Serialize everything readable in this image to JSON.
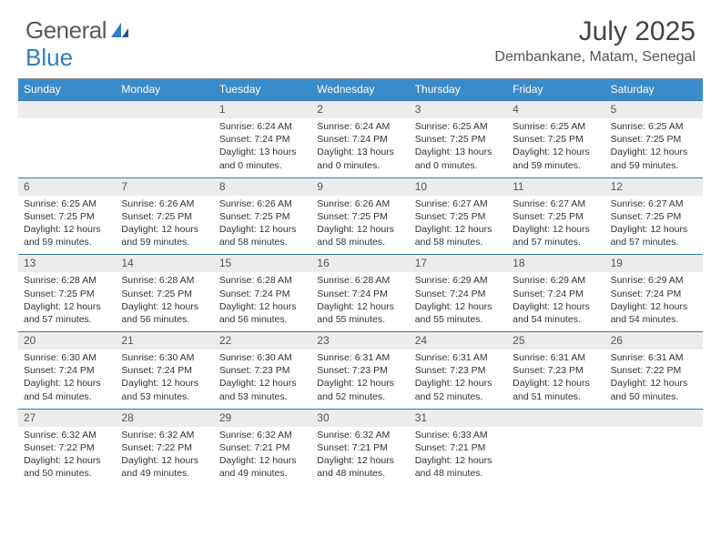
{
  "brand": {
    "part1": "General",
    "part2": "Blue"
  },
  "title": "July 2025",
  "location": "Dembankane, Matam, Senegal",
  "colors": {
    "header_bg": "#3a8bc9",
    "daynum_bg": "#ececec",
    "week_border": "#3a78a8",
    "brand_blue": "#2f7fc1",
    "text": "#333333",
    "bg": "#ffffff"
  },
  "weekdays": [
    "Sunday",
    "Monday",
    "Tuesday",
    "Wednesday",
    "Thursday",
    "Friday",
    "Saturday"
  ],
  "weeks": [
    [
      {
        "n": "",
        "lines": []
      },
      {
        "n": "",
        "lines": []
      },
      {
        "n": "1",
        "lines": [
          "Sunrise: 6:24 AM",
          "Sunset: 7:24 PM",
          "Daylight: 13 hours and 0 minutes."
        ]
      },
      {
        "n": "2",
        "lines": [
          "Sunrise: 6:24 AM",
          "Sunset: 7:24 PM",
          "Daylight: 13 hours and 0 minutes."
        ]
      },
      {
        "n": "3",
        "lines": [
          "Sunrise: 6:25 AM",
          "Sunset: 7:25 PM",
          "Daylight: 13 hours and 0 minutes."
        ]
      },
      {
        "n": "4",
        "lines": [
          "Sunrise: 6:25 AM",
          "Sunset: 7:25 PM",
          "Daylight: 12 hours and 59 minutes."
        ]
      },
      {
        "n": "5",
        "lines": [
          "Sunrise: 6:25 AM",
          "Sunset: 7:25 PM",
          "Daylight: 12 hours and 59 minutes."
        ]
      }
    ],
    [
      {
        "n": "6",
        "lines": [
          "Sunrise: 6:25 AM",
          "Sunset: 7:25 PM",
          "Daylight: 12 hours and 59 minutes."
        ]
      },
      {
        "n": "7",
        "lines": [
          "Sunrise: 6:26 AM",
          "Sunset: 7:25 PM",
          "Daylight: 12 hours and 59 minutes."
        ]
      },
      {
        "n": "8",
        "lines": [
          "Sunrise: 6:26 AM",
          "Sunset: 7:25 PM",
          "Daylight: 12 hours and 58 minutes."
        ]
      },
      {
        "n": "9",
        "lines": [
          "Sunrise: 6:26 AM",
          "Sunset: 7:25 PM",
          "Daylight: 12 hours and 58 minutes."
        ]
      },
      {
        "n": "10",
        "lines": [
          "Sunrise: 6:27 AM",
          "Sunset: 7:25 PM",
          "Daylight: 12 hours and 58 minutes."
        ]
      },
      {
        "n": "11",
        "lines": [
          "Sunrise: 6:27 AM",
          "Sunset: 7:25 PM",
          "Daylight: 12 hours and 57 minutes."
        ]
      },
      {
        "n": "12",
        "lines": [
          "Sunrise: 6:27 AM",
          "Sunset: 7:25 PM",
          "Daylight: 12 hours and 57 minutes."
        ]
      }
    ],
    [
      {
        "n": "13",
        "lines": [
          "Sunrise: 6:28 AM",
          "Sunset: 7:25 PM",
          "Daylight: 12 hours and 57 minutes."
        ]
      },
      {
        "n": "14",
        "lines": [
          "Sunrise: 6:28 AM",
          "Sunset: 7:25 PM",
          "Daylight: 12 hours and 56 minutes."
        ]
      },
      {
        "n": "15",
        "lines": [
          "Sunrise: 6:28 AM",
          "Sunset: 7:24 PM",
          "Daylight: 12 hours and 56 minutes."
        ]
      },
      {
        "n": "16",
        "lines": [
          "Sunrise: 6:28 AM",
          "Sunset: 7:24 PM",
          "Daylight: 12 hours and 55 minutes."
        ]
      },
      {
        "n": "17",
        "lines": [
          "Sunrise: 6:29 AM",
          "Sunset: 7:24 PM",
          "Daylight: 12 hours and 55 minutes."
        ]
      },
      {
        "n": "18",
        "lines": [
          "Sunrise: 6:29 AM",
          "Sunset: 7:24 PM",
          "Daylight: 12 hours and 54 minutes."
        ]
      },
      {
        "n": "19",
        "lines": [
          "Sunrise: 6:29 AM",
          "Sunset: 7:24 PM",
          "Daylight: 12 hours and 54 minutes."
        ]
      }
    ],
    [
      {
        "n": "20",
        "lines": [
          "Sunrise: 6:30 AM",
          "Sunset: 7:24 PM",
          "Daylight: 12 hours and 54 minutes."
        ]
      },
      {
        "n": "21",
        "lines": [
          "Sunrise: 6:30 AM",
          "Sunset: 7:24 PM",
          "Daylight: 12 hours and 53 minutes."
        ]
      },
      {
        "n": "22",
        "lines": [
          "Sunrise: 6:30 AM",
          "Sunset: 7:23 PM",
          "Daylight: 12 hours and 53 minutes."
        ]
      },
      {
        "n": "23",
        "lines": [
          "Sunrise: 6:31 AM",
          "Sunset: 7:23 PM",
          "Daylight: 12 hours and 52 minutes."
        ]
      },
      {
        "n": "24",
        "lines": [
          "Sunrise: 6:31 AM",
          "Sunset: 7:23 PM",
          "Daylight: 12 hours and 52 minutes."
        ]
      },
      {
        "n": "25",
        "lines": [
          "Sunrise: 6:31 AM",
          "Sunset: 7:23 PM",
          "Daylight: 12 hours and 51 minutes."
        ]
      },
      {
        "n": "26",
        "lines": [
          "Sunrise: 6:31 AM",
          "Sunset: 7:22 PM",
          "Daylight: 12 hours and 50 minutes."
        ]
      }
    ],
    [
      {
        "n": "27",
        "lines": [
          "Sunrise: 6:32 AM",
          "Sunset: 7:22 PM",
          "Daylight: 12 hours and 50 minutes."
        ]
      },
      {
        "n": "28",
        "lines": [
          "Sunrise: 6:32 AM",
          "Sunset: 7:22 PM",
          "Daylight: 12 hours and 49 minutes."
        ]
      },
      {
        "n": "29",
        "lines": [
          "Sunrise: 6:32 AM",
          "Sunset: 7:21 PM",
          "Daylight: 12 hours and 49 minutes."
        ]
      },
      {
        "n": "30",
        "lines": [
          "Sunrise: 6:32 AM",
          "Sunset: 7:21 PM",
          "Daylight: 12 hours and 48 minutes."
        ]
      },
      {
        "n": "31",
        "lines": [
          "Sunrise: 6:33 AM",
          "Sunset: 7:21 PM",
          "Daylight: 12 hours and 48 minutes."
        ]
      },
      {
        "n": "",
        "lines": []
      },
      {
        "n": "",
        "lines": []
      }
    ]
  ]
}
